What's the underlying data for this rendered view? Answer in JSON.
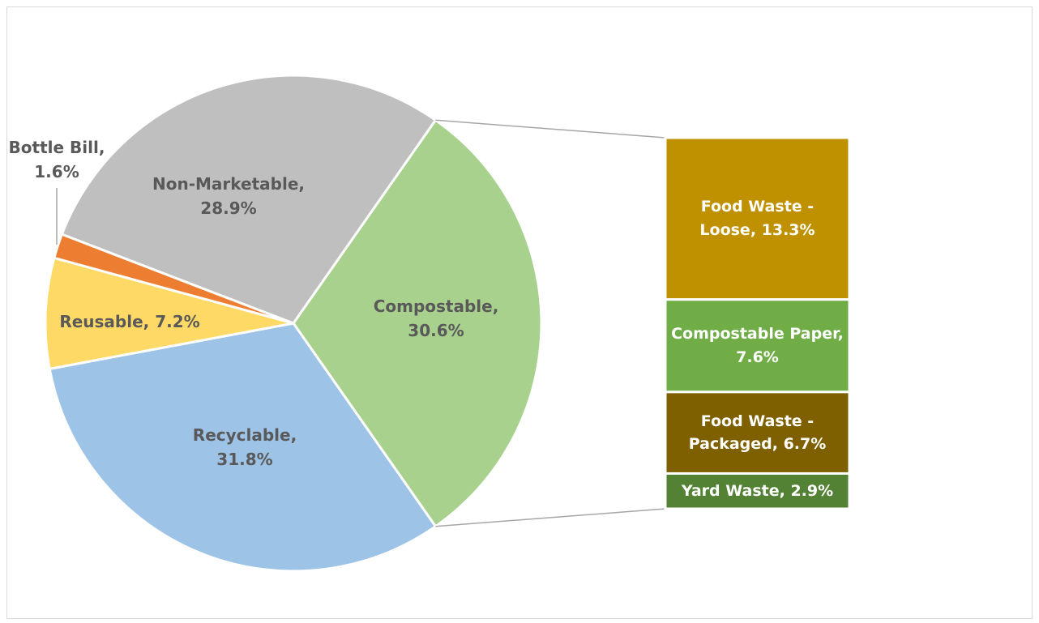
{
  "chart_data": {
    "type": "bar-of-pie",
    "pie": {
      "slices": [
        {
          "category": "Compostable",
          "value": 30.6,
          "label_lines": [
            "Compostable,",
            "30.6%"
          ],
          "color": "#a9d18e"
        },
        {
          "category": "Recyclable",
          "value": 31.8,
          "label_lines": [
            "Recyclable,",
            "31.8%"
          ],
          "color": "#9dc3e6"
        },
        {
          "category": "Reusable",
          "value": 7.2,
          "label_lines": [
            "Reusable, 7.2%"
          ],
          "color": "#ffd966"
        },
        {
          "category": "Bottle Bill",
          "value": 1.6,
          "label_lines": [
            "Bottle Bill,",
            "1.6%"
          ],
          "color": "#ed7d31"
        },
        {
          "category": "Non-Marketable",
          "value": 28.9,
          "label_lines": [
            "Non-Marketable,",
            "28.9%"
          ],
          "color": "#bfbfbf"
        }
      ]
    },
    "breakdown": {
      "of": "Compostable",
      "segments": [
        {
          "category": "Food Waste - Loose",
          "value": 13.3,
          "label_lines": [
            "Food Waste -",
            "Loose, 13.3%"
          ],
          "color": "#bf9000"
        },
        {
          "category": "Compostable Paper",
          "value": 7.6,
          "label_lines": [
            "Compostable Paper,",
            "7.6%"
          ],
          "color": "#70ad47"
        },
        {
          "category": "Food Waste - Packaged",
          "value": 6.7,
          "label_lines": [
            "Food Waste -",
            "Packaged, 6.7%"
          ],
          "color": "#7f6000"
        },
        {
          "category": "Yard Waste",
          "value": 2.9,
          "label_lines": [
            "Yard Waste, 2.9%"
          ],
          "color": "#548235"
        }
      ]
    },
    "label_color": "#595959",
    "connector_color": "#a6a6a6"
  }
}
